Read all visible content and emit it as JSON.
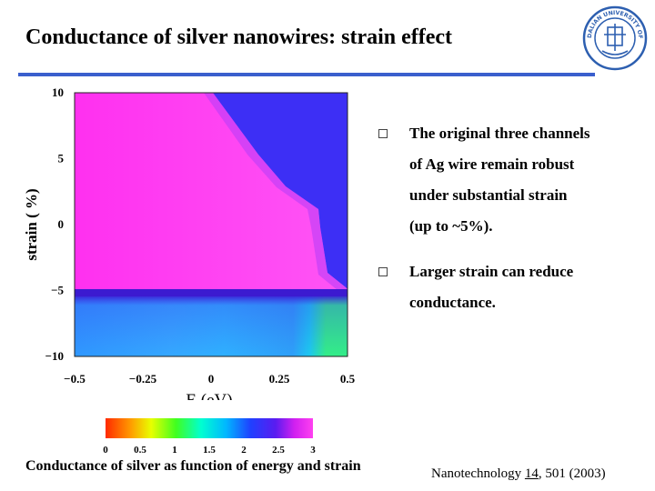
{
  "slide": {
    "title": "Conductance of silver nanowires: strain effect"
  },
  "bullets": [
    {
      "lines": [
        "The original three channels",
        "of Ag wire remain robust",
        "under substantial strain",
        "(up to ~5%)."
      ]
    },
    {
      "lines": [
        "Larger strain can reduce",
        "conductance."
      ]
    }
  ],
  "chart_data": {
    "type": "heatmap",
    "xlabel": "E (eV)",
    "ylabel": "strain ( %)",
    "x_ticks": [
      "−0.5",
      "−0.25",
      "0",
      "0.25",
      "0.5"
    ],
    "y_ticks": [
      "10",
      "5",
      "0",
      "−5",
      "−10"
    ],
    "xlim": [
      -0.5,
      0.5
    ],
    "ylim": [
      -10,
      10
    ],
    "colorbar": {
      "ticks": [
        "0",
        "0.5",
        "1",
        "1.5",
        "2",
        "2.5",
        "3"
      ],
      "range": [
        0,
        3
      ]
    },
    "regions": [
      {
        "description": "conductance ~3 (magenta) for strain above about -5% and energy below a diagonal boundary",
        "value": 3
      },
      {
        "description": "conductance ~2 (blue) at high energy / high strain corner",
        "value": 2
      },
      {
        "description": "conductance ~1.5 (cyan-blue) for strain below about -5%",
        "value": 1.5
      },
      {
        "description": "conductance ~1 (green) for strain below -5% at highest energy",
        "value": 1
      }
    ]
  },
  "caption": "Conductance of silver as function of energy and strain",
  "reference": {
    "journal": "Nanotechnology",
    "volume": "14",
    "rest": ", 501 (2003)"
  },
  "colors": {
    "title_rule": "#3a5fcd",
    "magenta": "#ff33ee",
    "blue": "#3d2ff5",
    "cyan": "#33aaff",
    "green": "#33ee88"
  },
  "logo": {
    "icon": "university-seal-icon",
    "text": "DALIAN UNIVERSITY OF TECHNOLOGY"
  }
}
